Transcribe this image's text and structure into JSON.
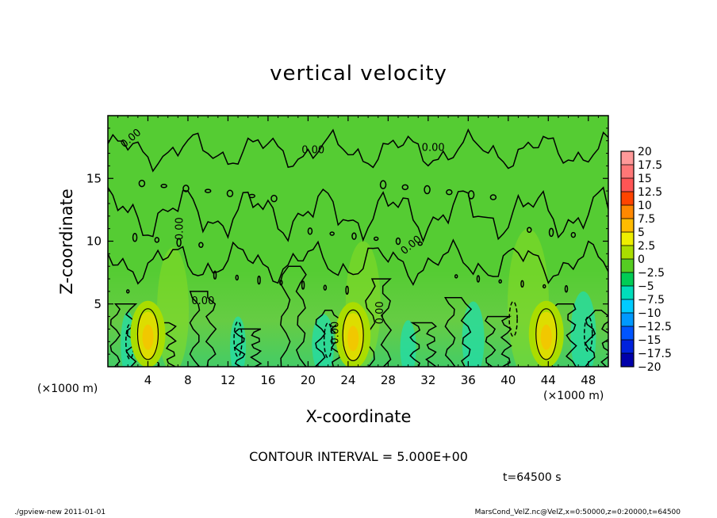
{
  "chart_data": {
    "type": "heatmap",
    "title": "vertical velocity",
    "xlabel": "X-coordinate",
    "ylabel": "Z-coordinate",
    "x_unit_left": "(×1000 m)",
    "x_unit_right": "(×1000 m)",
    "xlim": [
      0,
      50
    ],
    "ylim": [
      0,
      20
    ],
    "x_ticks": [
      4,
      8,
      12,
      16,
      20,
      24,
      28,
      32,
      36,
      40,
      44,
      48
    ],
    "y_ticks": [
      5,
      10,
      15
    ],
    "colorbar": {
      "levels": [
        "20",
        "17.5",
        "15",
        "12.5",
        "10",
        "7.5",
        "5",
        "2.5",
        "0",
        "−2.5",
        "−5",
        "−7.5",
        "−10",
        "−12.5",
        "−15",
        "−17.5",
        "−20"
      ],
      "colors": [
        "#ff9999",
        "#ff7777",
        "#ff5555",
        "#ff4400",
        "#ff8800",
        "#ffbb00",
        "#eeee00",
        "#aadd00",
        "#55cc22",
        "#00cc55",
        "#00ddbb",
        "#00ccff",
        "#0099ff",
        "#0055ff",
        "#0022dd",
        "#0000aa",
        "#6600aa"
      ]
    },
    "contour_labels": [
      "0.00",
      "0.00",
      "0.00",
      "0.00",
      "0.00",
      "0.00",
      "0.00",
      "0.00"
    ],
    "updrafts": [
      {
        "x": 4.0,
        "z": 2.6,
        "level": "5"
      },
      {
        "x": 24.5,
        "z": 2.5,
        "level": "5"
      },
      {
        "x": 43.8,
        "z": 2.6,
        "level": "5"
      }
    ],
    "contour_interval": "CONTOUR INTERVAL = 5.000E+00",
    "time": "t=64500 s"
  },
  "footer": {
    "left": "./gpview-new  2011-01-01",
    "right": "MarsCond_VelZ.nc@VelZ,x=0:50000,z=0:20000,t=64500"
  }
}
